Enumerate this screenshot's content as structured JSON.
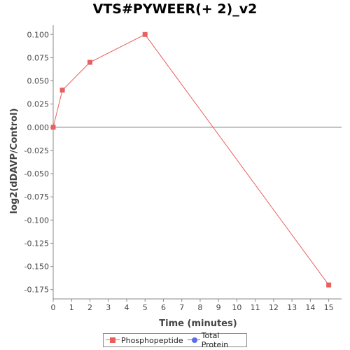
{
  "chart_data": {
    "type": "line",
    "title": "VTS#PYWEER(+ 2)_v2",
    "xlabel": "Time (minutes)",
    "ylabel": "log2(dDAVP/Control)",
    "xlim": [
      0,
      15.7
    ],
    "ylim": [
      -0.185,
      0.11
    ],
    "x_ticks": [
      0,
      1,
      2,
      3,
      4,
      5,
      6,
      7,
      8,
      9,
      10,
      11,
      12,
      13,
      14,
      15
    ],
    "y_ticks": [
      0.1,
      0.075,
      0.05,
      0.025,
      0.0,
      -0.025,
      -0.05,
      -0.075,
      -0.1,
      -0.125,
      -0.15,
      -0.175
    ],
    "y_tick_labels": [
      "0.100",
      "0.075",
      "0.050",
      "0.025",
      "0.000",
      "-0.025",
      "-0.050",
      "-0.075",
      "-0.100",
      "-0.125",
      "-0.150",
      "-0.175"
    ],
    "grid": false,
    "zero_line": true,
    "legend_position": "bottom",
    "series": [
      {
        "name": "Phosphopeptide",
        "color": "#e8605e",
        "marker": "square",
        "x": [
          0,
          0.5,
          2,
          5,
          15
        ],
        "y": [
          0.0,
          0.04,
          0.07,
          0.1,
          -0.17
        ]
      },
      {
        "name": "Total Protein",
        "color": "#5b6ee8",
        "marker": "circle",
        "x": [],
        "y": []
      }
    ]
  }
}
